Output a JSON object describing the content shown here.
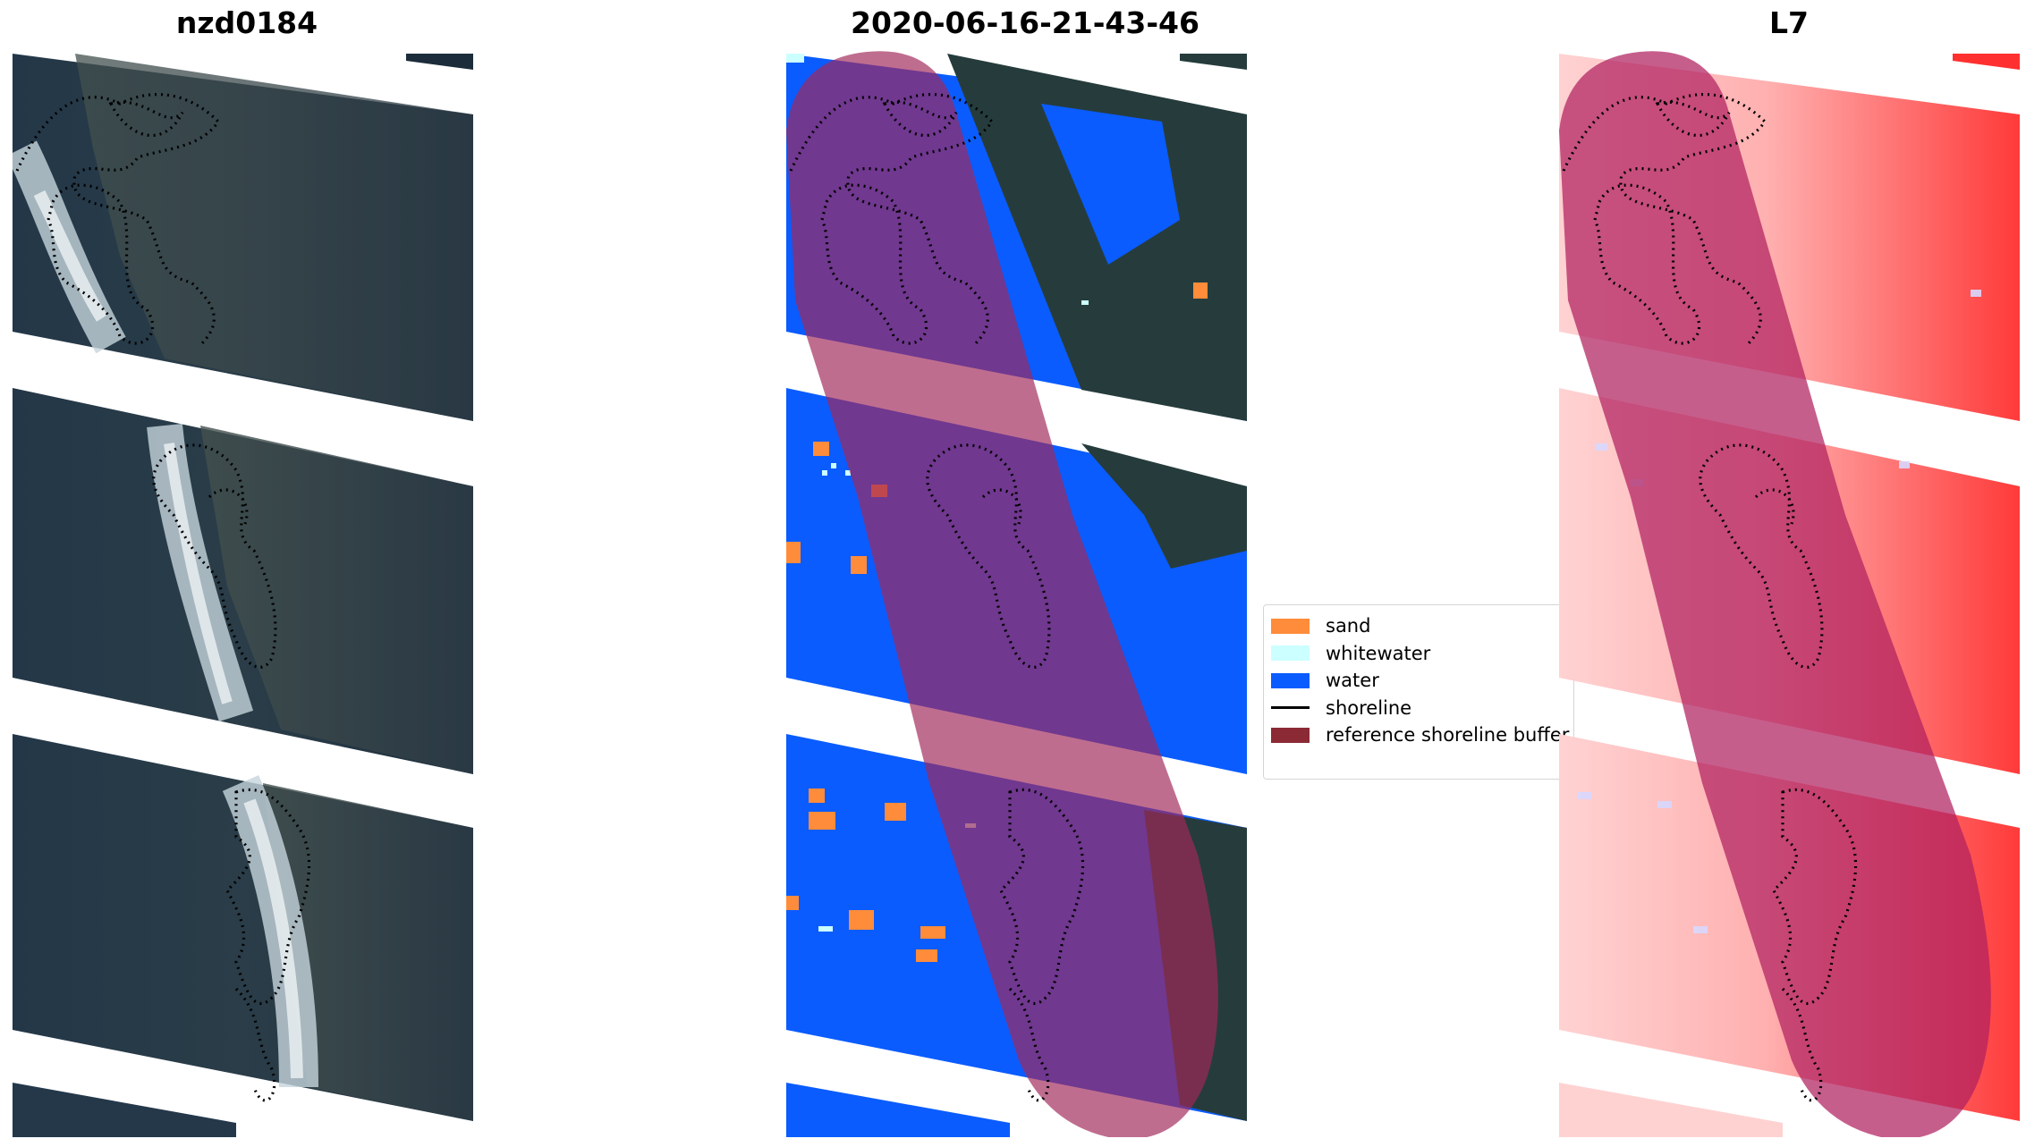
{
  "panels": [
    {
      "title": "nzd0184",
      "background": "rgb true-colour satellite image"
    },
    {
      "title": "2020-06-16-21-43-46",
      "background": "pixel classification"
    },
    {
      "title": "L7",
      "background": "water index"
    }
  ],
  "legend": {
    "items": [
      {
        "label": "sand",
        "color": "#ff8c3a",
        "symbol": "patch"
      },
      {
        "label": "whitewater",
        "color": "#ccffff",
        "symbol": "patch"
      },
      {
        "label": "water",
        "color": "#0a5cff",
        "symbol": "patch"
      },
      {
        "label": "shoreline",
        "color": "#000000",
        "symbol": "line"
      },
      {
        "label": "reference shoreline buffer",
        "color": "#8b2a35",
        "symbol": "patch"
      }
    ]
  },
  "colors": {
    "rgb_land_dark": "#1e2f3e",
    "rgb_land_mid": "#2d4150",
    "rgb_surf": "#c8d6dc",
    "class_water": "#0a5cff",
    "class_land": "#263c3c",
    "class_sand": "#ff8c3a",
    "buffer_overlay": "#a0285a",
    "buffer_on_water": "#5a1fa0",
    "index_light": "#ffd6d6",
    "index_strong": "#ff3030",
    "index_buffer": "#c0204a"
  },
  "shoreline_style": "dotted black"
}
